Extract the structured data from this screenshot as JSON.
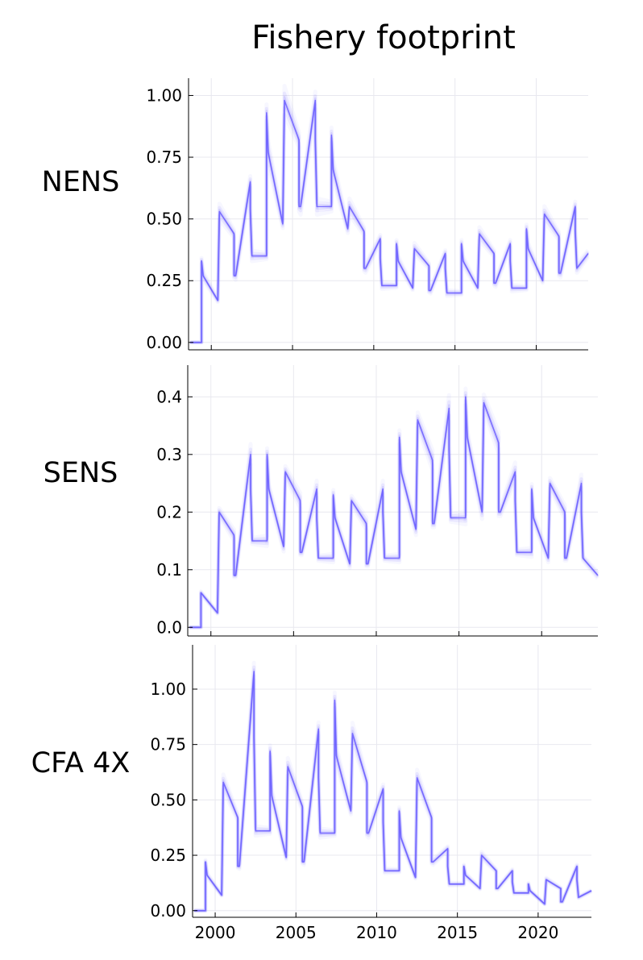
{
  "title": "Fishery footprint",
  "colors": {
    "trace": "#6a5cff",
    "grid": "#e8e8ef",
    "axis": "#000000"
  },
  "chart_data": [
    {
      "type": "line",
      "label": "NENS",
      "xlim": [
        1998.6,
        2023.2
      ],
      "ylim": [
        -0.03,
        1.07
      ],
      "xticks": [
        2000,
        2005,
        2010,
        2015,
        2020
      ],
      "xtick_labels": [],
      "yticks": [
        0,
        0.25,
        0.5,
        0.75,
        1.0
      ],
      "ytick_labels": [
        "0.00",
        "0.25",
        "0.50",
        "0.75",
        "1.00"
      ],
      "grid": true,
      "series": [
        {
          "x": [
            1998.7,
            1999.4,
            1999.4,
            1999.5,
            2000.4,
            2000.4,
            2000.5,
            2001.4,
            2001.4,
            2001.5,
            2002.4,
            2002.4,
            2002.5,
            2003.4,
            2003.4,
            2003.5,
            2004.4,
            2004.4,
            2004.5,
            2005.4,
            2005.4,
            2005.5,
            2006.4,
            2006.4,
            2006.5,
            2007.4,
            2007.4,
            2007.5,
            2008.4,
            2008.4,
            2008.5,
            2009.4,
            2009.4,
            2009.5,
            2010.4,
            2010.4,
            2010.5,
            2011.4,
            2011.4,
            2011.5,
            2012.4,
            2012.4,
            2012.5,
            2013.4,
            2013.4,
            2013.5,
            2014.4,
            2014.4,
            2014.5,
            2015.4,
            2015.4,
            2015.5,
            2016.4,
            2016.4,
            2016.5,
            2017.4,
            2017.4,
            2017.5,
            2018.4,
            2018.4,
            2018.5,
            2019.4,
            2019.4,
            2019.5,
            2020.4,
            2020.4,
            2020.5,
            2021.4,
            2021.4,
            2021.5,
            2022.4,
            2022.4,
            2022.5,
            2023.2
          ],
          "y": [
            0,
            0,
            0.33,
            0.27,
            0.17,
            0.17,
            0.53,
            0.44,
            0.27,
            0.27,
            0.65,
            0.54,
            0.35,
            0.35,
            0.93,
            0.77,
            0.48,
            0.48,
            0.98,
            0.82,
            0.55,
            0.55,
            0.98,
            0.82,
            0.55,
            0.55,
            0.84,
            0.7,
            0.46,
            0.46,
            0.55,
            0.45,
            0.3,
            0.3,
            0.42,
            0.34,
            0.23,
            0.23,
            0.4,
            0.33,
            0.22,
            0.22,
            0.38,
            0.31,
            0.21,
            0.21,
            0.36,
            0.3,
            0.2,
            0.2,
            0.4,
            0.33,
            0.22,
            0.22,
            0.44,
            0.36,
            0.24,
            0.24,
            0.4,
            0.33,
            0.22,
            0.22,
            0.46,
            0.38,
            0.25,
            0.25,
            0.52,
            0.43,
            0.28,
            0.28,
            0.55,
            0.45,
            0.3,
            0.36
          ]
        }
      ]
    },
    {
      "type": "line",
      "label": "SENS",
      "xlim": [
        1998.6,
        2023.4
      ],
      "ylim": [
        -0.015,
        0.455
      ],
      "xticks": [
        2000,
        2005,
        2010,
        2015,
        2020
      ],
      "xtick_labels": [],
      "yticks": [
        0,
        0.1,
        0.2,
        0.3,
        0.4
      ],
      "ytick_labels": [
        "0.0",
        "0.1",
        "0.2",
        "0.3",
        "0.4"
      ],
      "grid": true,
      "series": [
        {
          "x": [
            1998.7,
            1999.4,
            1999.4,
            2000.4,
            2000.4,
            2000.5,
            2001.4,
            2001.4,
            2001.5,
            2002.4,
            2002.4,
            2002.5,
            2003.4,
            2003.4,
            2003.5,
            2004.4,
            2004.4,
            2004.5,
            2005.4,
            2005.4,
            2005.5,
            2006.4,
            2006.4,
            2006.5,
            2007.4,
            2007.4,
            2007.5,
            2008.4,
            2008.4,
            2008.5,
            2009.4,
            2009.4,
            2009.5,
            2010.4,
            2010.4,
            2010.5,
            2011.4,
            2011.4,
            2011.5,
            2012.4,
            2012.4,
            2012.5,
            2013.4,
            2013.4,
            2013.5,
            2014.4,
            2014.4,
            2014.5,
            2015.4,
            2015.4,
            2015.5,
            2016.4,
            2016.4,
            2016.5,
            2017.4,
            2017.4,
            2017.5,
            2018.4,
            2018.4,
            2018.5,
            2019.4,
            2019.4,
            2019.5,
            2020.4,
            2020.4,
            2020.5,
            2021.4,
            2021.4,
            2021.5,
            2022.4,
            2022.4,
            2022.5,
            2023.4
          ],
          "y": [
            0,
            0,
            0.06,
            0.025,
            0.025,
            0.2,
            0.16,
            0.09,
            0.09,
            0.3,
            0.24,
            0.15,
            0.15,
            0.3,
            0.24,
            0.14,
            0.14,
            0.27,
            0.22,
            0.13,
            0.13,
            0.24,
            0.19,
            0.12,
            0.12,
            0.23,
            0.19,
            0.11,
            0.11,
            0.22,
            0.18,
            0.11,
            0.11,
            0.24,
            0.2,
            0.12,
            0.12,
            0.33,
            0.27,
            0.17,
            0.17,
            0.36,
            0.29,
            0.18,
            0.18,
            0.38,
            0.31,
            0.19,
            0.19,
            0.4,
            0.33,
            0.2,
            0.2,
            0.39,
            0.32,
            0.2,
            0.2,
            0.27,
            0.22,
            0.13,
            0.13,
            0.24,
            0.19,
            0.12,
            0.12,
            0.25,
            0.2,
            0.12,
            0.12,
            0.25,
            0.2,
            0.12,
            0.09
          ]
        }
      ]
    },
    {
      "type": "line",
      "label": "CFA 4X",
      "xlim": [
        1998.6,
        2023.3
      ],
      "ylim": [
        -0.03,
        1.2
      ],
      "xticks": [
        2000,
        2005,
        2010,
        2015,
        2020
      ],
      "xtick_labels": [
        "2000",
        "2005",
        "2010",
        "2015",
        "2020"
      ],
      "yticks": [
        0,
        0.25,
        0.5,
        0.75,
        1.0
      ],
      "ytick_labels": [
        "0.00",
        "0.25",
        "0.50",
        "0.75",
        "1.00"
      ],
      "grid": true,
      "series": [
        {
          "x": [
            1998.7,
            1999.4,
            1999.4,
            1999.5,
            2000.4,
            2000.4,
            2000.5,
            2001.4,
            2001.4,
            2001.5,
            2002.4,
            2002.4,
            2002.5,
            2003.4,
            2003.4,
            2003.5,
            2004.4,
            2004.4,
            2004.5,
            2005.4,
            2005.4,
            2005.5,
            2006.4,
            2006.4,
            2006.5,
            2007.4,
            2007.4,
            2007.5,
            2008.4,
            2008.4,
            2008.5,
            2009.4,
            2009.4,
            2009.5,
            2010.4,
            2010.4,
            2010.5,
            2011.4,
            2011.4,
            2011.5,
            2012.4,
            2012.4,
            2012.5,
            2013.4,
            2013.4,
            2013.5,
            2014.4,
            2014.4,
            2014.5,
            2015.4,
            2015.4,
            2015.5,
            2016.4,
            2016.4,
            2016.5,
            2017.4,
            2017.4,
            2017.5,
            2018.4,
            2018.4,
            2018.5,
            2019.4,
            2019.4,
            2019.5,
            2020.4,
            2020.4,
            2020.5,
            2021.4,
            2021.4,
            2021.5,
            2022.4,
            2022.4,
            2022.5,
            2023.3
          ],
          "y": [
            0,
            0,
            0.22,
            0.16,
            0.07,
            0.07,
            0.58,
            0.42,
            0.2,
            0.2,
            1.08,
            0.78,
            0.36,
            0.36,
            0.72,
            0.52,
            0.24,
            0.24,
            0.65,
            0.47,
            0.22,
            0.22,
            0.82,
            0.6,
            0.35,
            0.35,
            0.95,
            0.7,
            0.45,
            0.45,
            0.8,
            0.58,
            0.35,
            0.35,
            0.55,
            0.4,
            0.18,
            0.18,
            0.45,
            0.33,
            0.15,
            0.15,
            0.6,
            0.42,
            0.22,
            0.22,
            0.28,
            0.2,
            0.12,
            0.12,
            0.2,
            0.16,
            0.1,
            0.1,
            0.25,
            0.18,
            0.1,
            0.1,
            0.18,
            0.13,
            0.08,
            0.08,
            0.12,
            0.09,
            0.03,
            0.03,
            0.14,
            0.1,
            0.04,
            0.04,
            0.2,
            0.14,
            0.06,
            0.09
          ]
        }
      ]
    }
  ]
}
